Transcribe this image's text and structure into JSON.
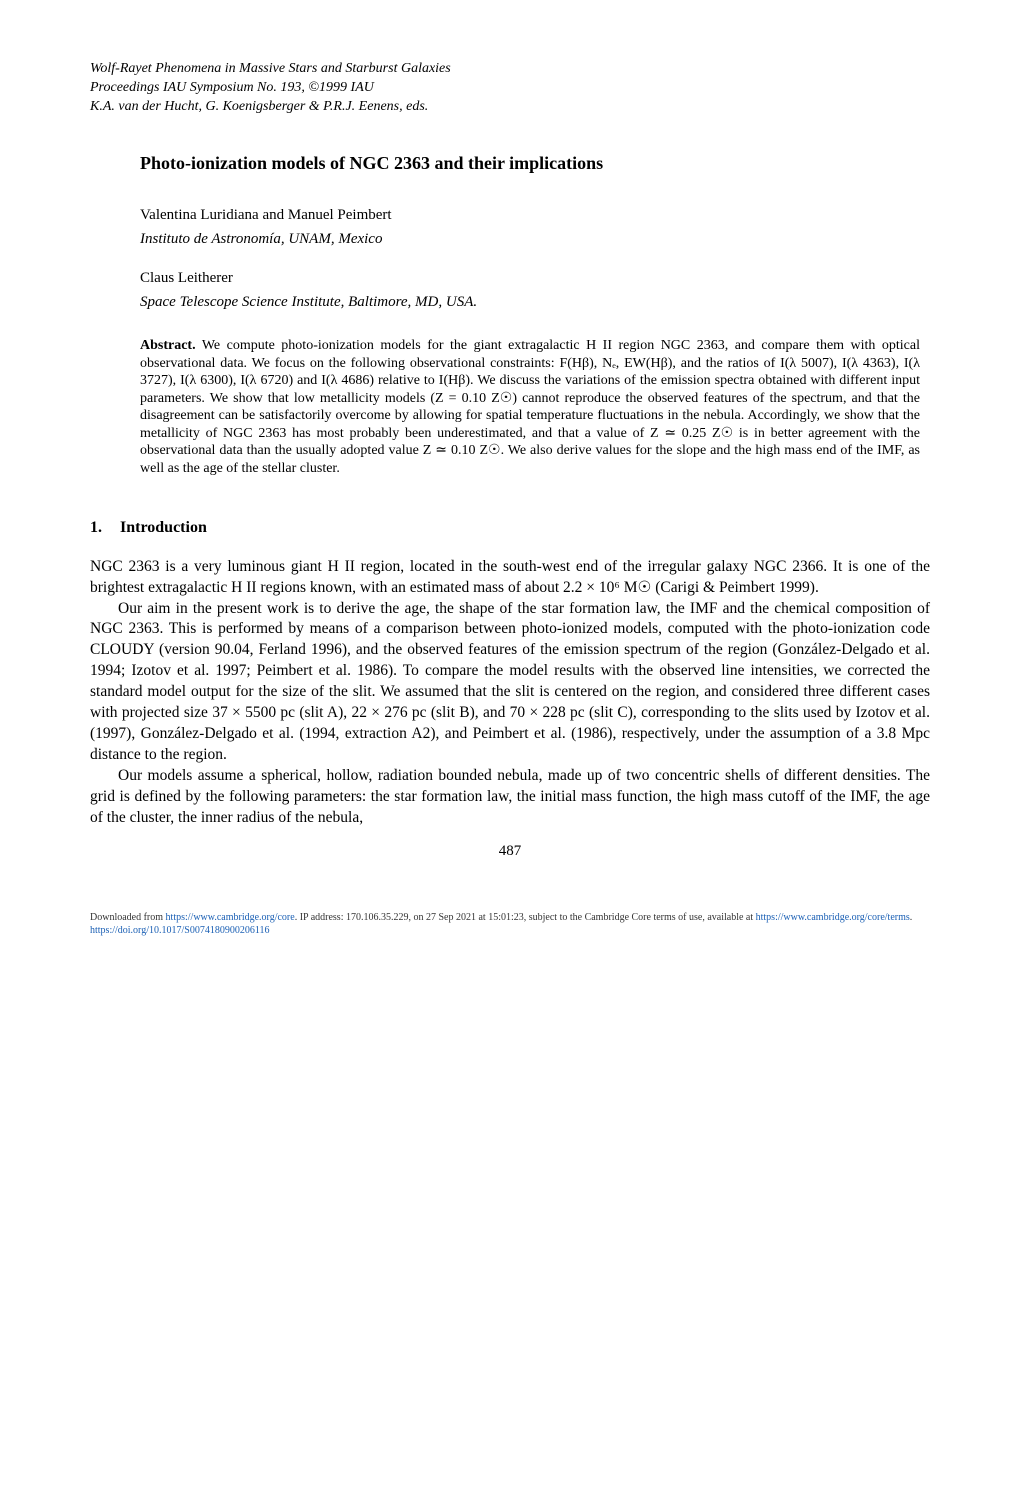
{
  "header": {
    "line1": "Wolf-Rayet Phenomena in Massive Stars and Starburst Galaxies",
    "line2": "Proceedings IAU Symposium No. 193, ©1999 IAU",
    "line3": "K.A. van der Hucht, G. Koenigsberger & P.R.J. Eenens, eds."
  },
  "title": "Photo-ionization models of NGC 2363 and their implications",
  "authors1": "Valentina Luridiana and Manuel Peimbert",
  "affiliation1": "Instituto de Astronomía, UNAM, Mexico",
  "authors2": "Claus Leitherer",
  "affiliation2": "Space Telescope Science Institute, Baltimore, MD, USA.",
  "abstract_label": "Abstract.",
  "abstract_text": "   We compute photo-ionization models for the giant extragalactic H II region NGC 2363, and compare them with optical observational data. We focus on the following observational constraints: F(Hβ), Nₑ, EW(Hβ), and the ratios of I(λ 5007), I(λ 4363), I(λ 3727), I(λ 6300), I(λ 6720) and I(λ 4686) relative to I(Hβ). We discuss the variations of the emission spectra obtained with different input parameters. We show that low metallicity models (Z = 0.10 Z☉) cannot reproduce the observed features of the spectrum, and that the disagreement can be satisfactorily overcome by allowing for spatial temperature fluctuations in the nebula. Accordingly, we show that the metallicity of NGC 2363 has most probably been underestimated, and that a value of Z ≃ 0.25 Z☉ is in better agreement with the observational data than the usually adopted value Z ≃ 0.10 Z☉. We also derive values for the slope and the high mass end of the IMF, as well as the age of the stellar cluster.",
  "section1_num": "1.",
  "section1_title": "Introduction",
  "para1": "NGC 2363 is a very luminous giant H II region, located in the south-west end of the irregular galaxy NGC 2366. It is one of the brightest extragalactic H II regions known, with an estimated mass of about 2.2 × 10⁶ M☉ (Carigi & Peimbert 1999).",
  "para2": "Our aim in the present work is to derive the age, the shape of the star formation law, the IMF and the chemical composition of NGC 2363. This is performed by means of a comparison between photo-ionized models, computed with the photo-ionization code CLOUDY (version 90.04, Ferland 1996), and the observed features of the emission spectrum of the region (González-Delgado et al. 1994; Izotov et al. 1997; Peimbert et al. 1986). To compare the model results with the observed line intensities, we corrected the standard model output for the size of the slit. We assumed that the slit is centered on the region, and considered three different cases with projected size 37 × 5500 pc (slit A), 22 × 276 pc (slit B), and 70 × 228 pc (slit C), corresponding to the slits used by Izotov et al. (1997), González-Delgado et al. (1994, extraction A2), and Peimbert et al. (1986), respectively, under the assumption of a 3.8 Mpc distance to the region.",
  "para3": "Our models assume a spherical, hollow, radiation bounded nebula, made up of two concentric shells of different densities. The grid is defined by the following parameters: the star formation law, the initial mass function, the high mass cutoff of the IMF, the age of the cluster, the inner radius of the nebula,",
  "page_num": "487",
  "footer": {
    "prefix1": "Downloaded from ",
    "link1": "https://www.cambridge.org/core",
    "mid1": ". IP address: 170.106.35.229, on 27 Sep 2021 at 15:01:23, subject to the Cambridge Core terms of use, available at ",
    "link2": "https://www.cambridge.org/core/terms",
    "mid2": ". ",
    "link3": "https://doi.org/10.1017/S0074180900206116"
  }
}
